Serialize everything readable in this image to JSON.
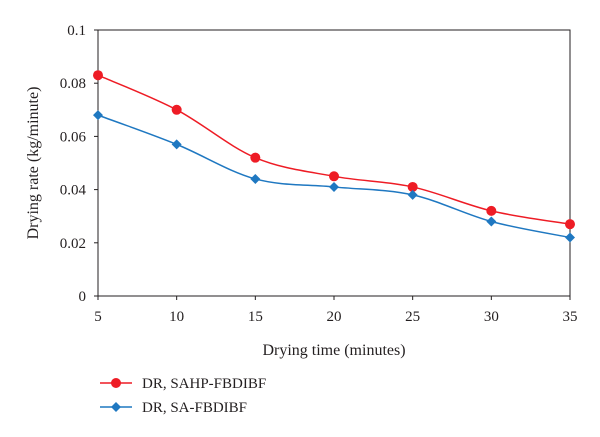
{
  "chart_data": {
    "type": "line",
    "title": "",
    "xlabel": "Drying time (minutes)",
    "ylabel": "Drying rate (kg/minute)",
    "xlim": [
      5,
      35
    ],
    "ylim": [
      0,
      0.1
    ],
    "xticks": [
      "5",
      "10",
      "15",
      "20",
      "25",
      "30",
      "35"
    ],
    "yticks": [
      "0",
      "0.02",
      "0.04",
      "0.06",
      "0.08",
      "0.1"
    ],
    "grid": false,
    "legend_position": "bottom-left",
    "x": [
      5,
      10,
      15,
      20,
      25,
      30,
      35
    ],
    "series": [
      {
        "name": "DR, SAHP-FBDIBF",
        "color": "#ee1c25",
        "marker": "circle",
        "values": [
          0.083,
          0.07,
          0.052,
          0.045,
          0.041,
          0.032,
          0.027
        ]
      },
      {
        "name": "DR, SA-FBDIBF",
        "color": "#1f78c1",
        "marker": "diamond",
        "values": [
          0.068,
          0.057,
          0.044,
          0.041,
          0.038,
          0.028,
          0.022
        ]
      }
    ]
  }
}
